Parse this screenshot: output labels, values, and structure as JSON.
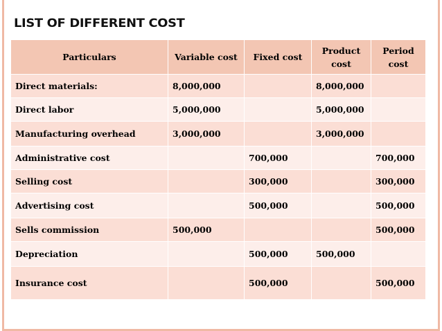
{
  "title": "LIST OF DIFFERENT COST",
  "table": {
    "headers": [
      "Particulars",
      "Variable cost",
      "Fixed cost",
      "Product cost",
      "Period cost"
    ],
    "rows": [
      [
        "Direct materials:",
        "8,000,000",
        "",
        "8,000,000",
        ""
      ],
      [
        "Direct labor",
        "5,000,000",
        "",
        "5,000,000",
        ""
      ],
      [
        "Manufacturing overhead",
        "3,000,000",
        "",
        "3,000,000",
        ""
      ],
      [
        "Administrative cost",
        "",
        "700,000",
        "",
        "700,000"
      ],
      [
        "Selling cost",
        "",
        " 300,000",
        "",
        "300,000"
      ],
      [
        "Advertising cost",
        "",
        "500,000",
        "",
        "500,000"
      ],
      [
        "Sells commission",
        "500,000",
        "",
        "",
        "500,000"
      ],
      [
        "Depreciation",
        "",
        "500,000",
        "500,000",
        ""
      ],
      [
        "Insurance cost",
        "",
        "500,000",
        "",
        "500,000"
      ]
    ]
  }
}
